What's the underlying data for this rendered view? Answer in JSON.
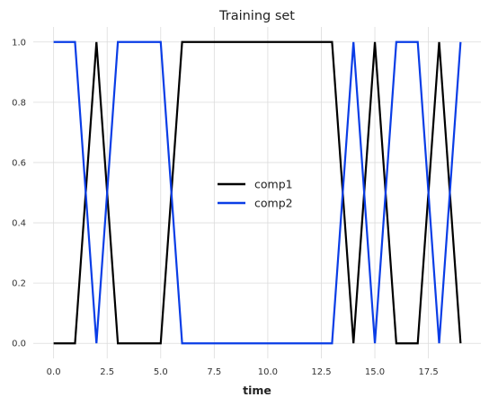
{
  "chart_data": {
    "type": "line",
    "title": "Training set",
    "xlabel": "time",
    "ylabel": "",
    "xlim": [
      -0.95,
      19.95
    ],
    "ylim": [
      -0.05,
      1.05
    ],
    "xticks": [
      0.0,
      2.5,
      5.0,
      7.5,
      10.0,
      12.5,
      15.0,
      17.5
    ],
    "xtick_labels": [
      "0.0",
      "2.5",
      "5.0",
      "7.5",
      "10.0",
      "12.5",
      "15.0",
      "17.5"
    ],
    "yticks": [
      0.0,
      0.2,
      0.4,
      0.6,
      0.8,
      1.0
    ],
    "ytick_labels": [
      "0.0",
      "0.2",
      "0.4",
      "0.6",
      "0.8",
      "1.0"
    ],
    "grid": true,
    "legend_position": "center",
    "x": [
      0,
      1,
      2,
      3,
      4,
      5,
      6,
      7,
      8,
      9,
      10,
      11,
      12,
      13,
      14,
      15,
      16,
      17,
      18,
      19
    ],
    "series": [
      {
        "name": "comp1",
        "color": "#000000",
        "values": [
          0,
          0,
          1,
          0,
          0,
          0,
          1,
          1,
          1,
          1,
          1,
          1,
          1,
          1,
          0,
          1,
          0,
          0,
          1,
          0
        ]
      },
      {
        "name": "comp2",
        "color": "#0a3de6",
        "values": [
          1,
          1,
          0,
          1,
          1,
          1,
          0,
          0,
          0,
          0,
          0,
          0,
          0,
          0,
          1,
          0,
          1,
          1,
          0,
          1
        ]
      }
    ]
  }
}
